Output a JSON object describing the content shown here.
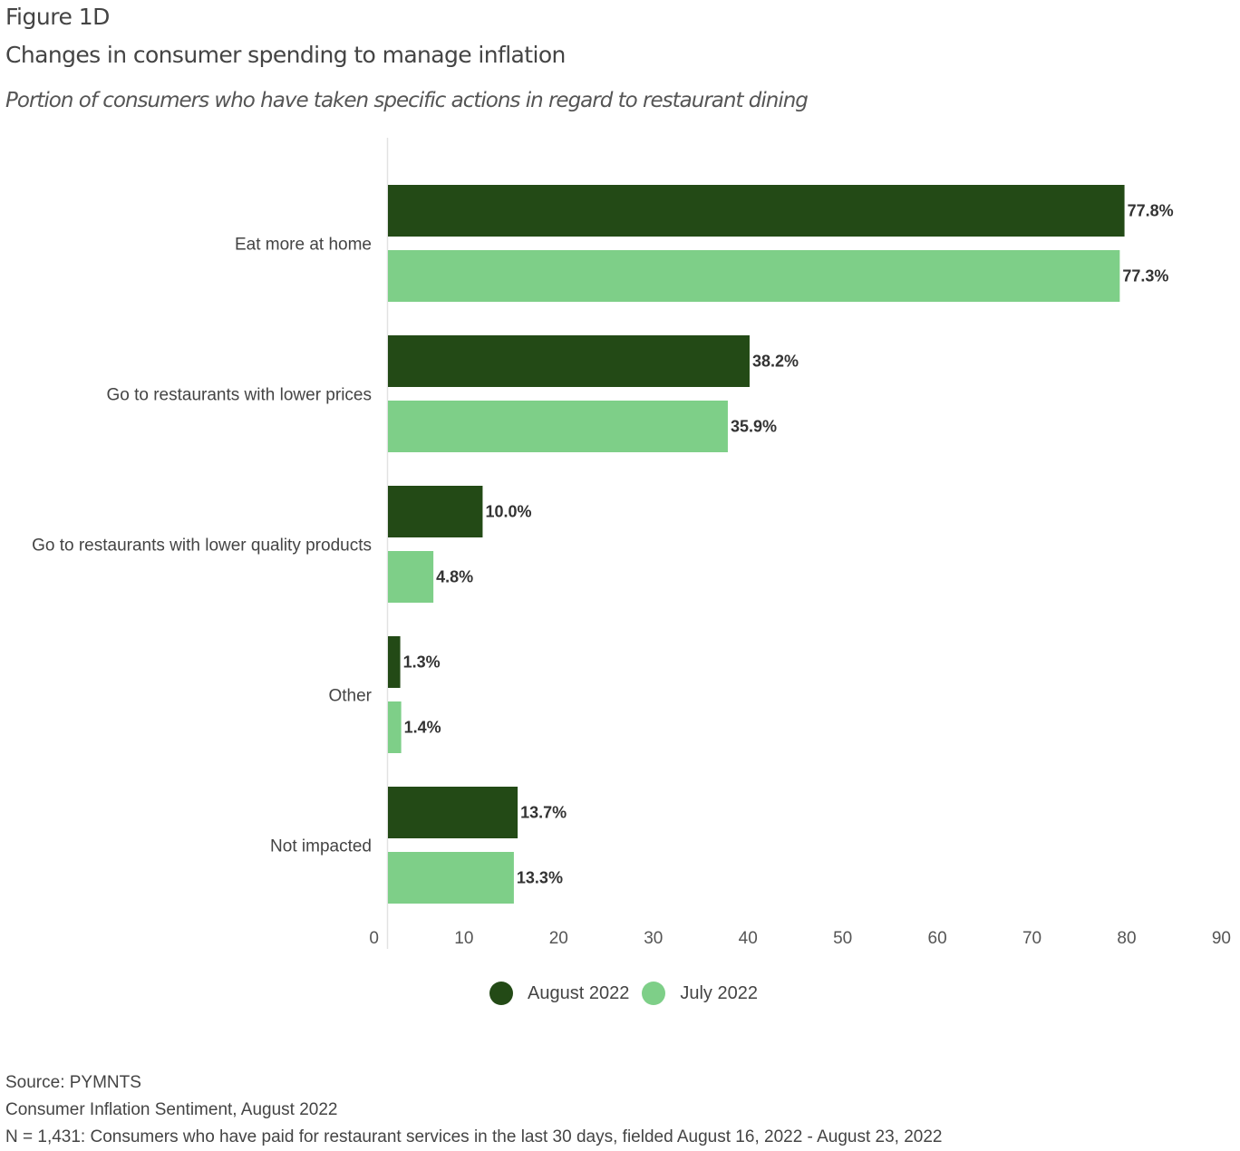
{
  "header": {
    "figure_label": "Figure 1D",
    "title": "Changes in consumer spending to manage inflation",
    "subtitle": "Portion of consumers who have taken specific actions in regard to restaurant dining"
  },
  "chart_data": {
    "type": "bar",
    "orientation": "horizontal",
    "title": "Changes in consumer spending to manage inflation",
    "subtitle": "Portion of consumers who have taken specific actions in regard to restaurant dining",
    "categories": [
      "Eat more at home",
      "Go to restaurants with lower prices",
      "Go to restaurants with lower quality products",
      "Other",
      "Not impacted"
    ],
    "series": [
      {
        "name": "August 2022",
        "color": "#234a16",
        "values": [
          77.8,
          38.2,
          10.0,
          1.3,
          13.7
        ],
        "labels": [
          "77.8%",
          "38.2%",
          "10.0%",
          "1.3%",
          "13.7%"
        ]
      },
      {
        "name": "July 2022",
        "color": "#7ecf88",
        "values": [
          77.3,
          35.9,
          4.8,
          1.4,
          13.3
        ],
        "labels": [
          "77.3%",
          "35.9%",
          "4.8%",
          "1.4%",
          "13.3%"
        ]
      }
    ],
    "xlabel": "",
    "ylabel": "",
    "xlim": [
      0,
      90
    ],
    "xticks": [
      0,
      10,
      20,
      30,
      40,
      50,
      60,
      70,
      80,
      90
    ],
    "xtick_labels": [
      "0",
      "10",
      "20",
      "30",
      "40",
      "50",
      "60",
      "70",
      "80",
      "90"
    ],
    "grid": false,
    "legend_position": "bottom-center"
  },
  "legend": [
    {
      "label": "August 2022",
      "color": "#234a16"
    },
    {
      "label": "July 2022",
      "color": "#7ecf88"
    }
  ],
  "footer": {
    "source": "Source: PYMNTS",
    "report": "Consumer Inflation Sentiment, August 2022",
    "note": "N = 1,431: Consumers who have paid for restaurant services in the last 30 days, fielded August 16, 2022 - August 23, 2022"
  }
}
